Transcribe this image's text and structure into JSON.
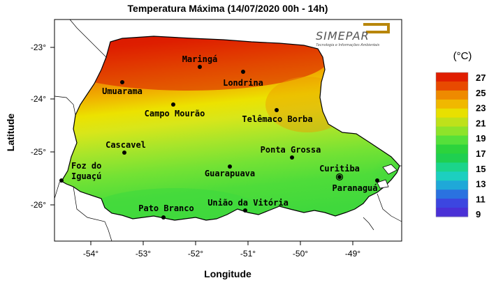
{
  "title": "Temperatura Máxima (14/07/2020 00h - 14h)",
  "xlabel": "Longitude",
  "ylabel": "Latitude",
  "x_ticks": [
    "-54°",
    "-53°",
    "-52°",
    "-51°",
    "-50°",
    "-49°"
  ],
  "y_ticks": [
    "-23°",
    "-24°",
    "-25°",
    "-26°"
  ],
  "logo": {
    "name": "SIMEPAR",
    "tagline": "Tecnologia e Informações Ambientais"
  },
  "legend": {
    "unit": "(°C)",
    "labels": [
      "27",
      "25",
      "23",
      "21",
      "19",
      "17",
      "15",
      "13",
      "11",
      "9"
    ],
    "colors": [
      "#e01e00",
      "#e84a00",
      "#ee8a00",
      "#f0b800",
      "#e8e000",
      "#bfe11a",
      "#8ee32a",
      "#55e03a",
      "#2cd33c",
      "#1fcf50",
      "#1bd48b",
      "#1ccfc0",
      "#1fa8d8",
      "#2a72e0",
      "#3c46e0",
      "#4a30d6"
    ]
  },
  "cities": [
    {
      "name": "Maringá"
    },
    {
      "name": "Londrina"
    },
    {
      "name": "Umuarama"
    },
    {
      "name": "Campo Mourão"
    },
    {
      "name": "Telêmaco Borba"
    },
    {
      "name": "Cascavel"
    },
    {
      "name": "Ponta Grossa"
    },
    {
      "name": "Foz do",
      "name2": "Iguaçú"
    },
    {
      "name": "Guarapuava"
    },
    {
      "name": "Curitiba"
    },
    {
      "name": "Paranaguá"
    },
    {
      "name": "Pato Branco"
    },
    {
      "name": "União da Vitória"
    }
  ]
}
